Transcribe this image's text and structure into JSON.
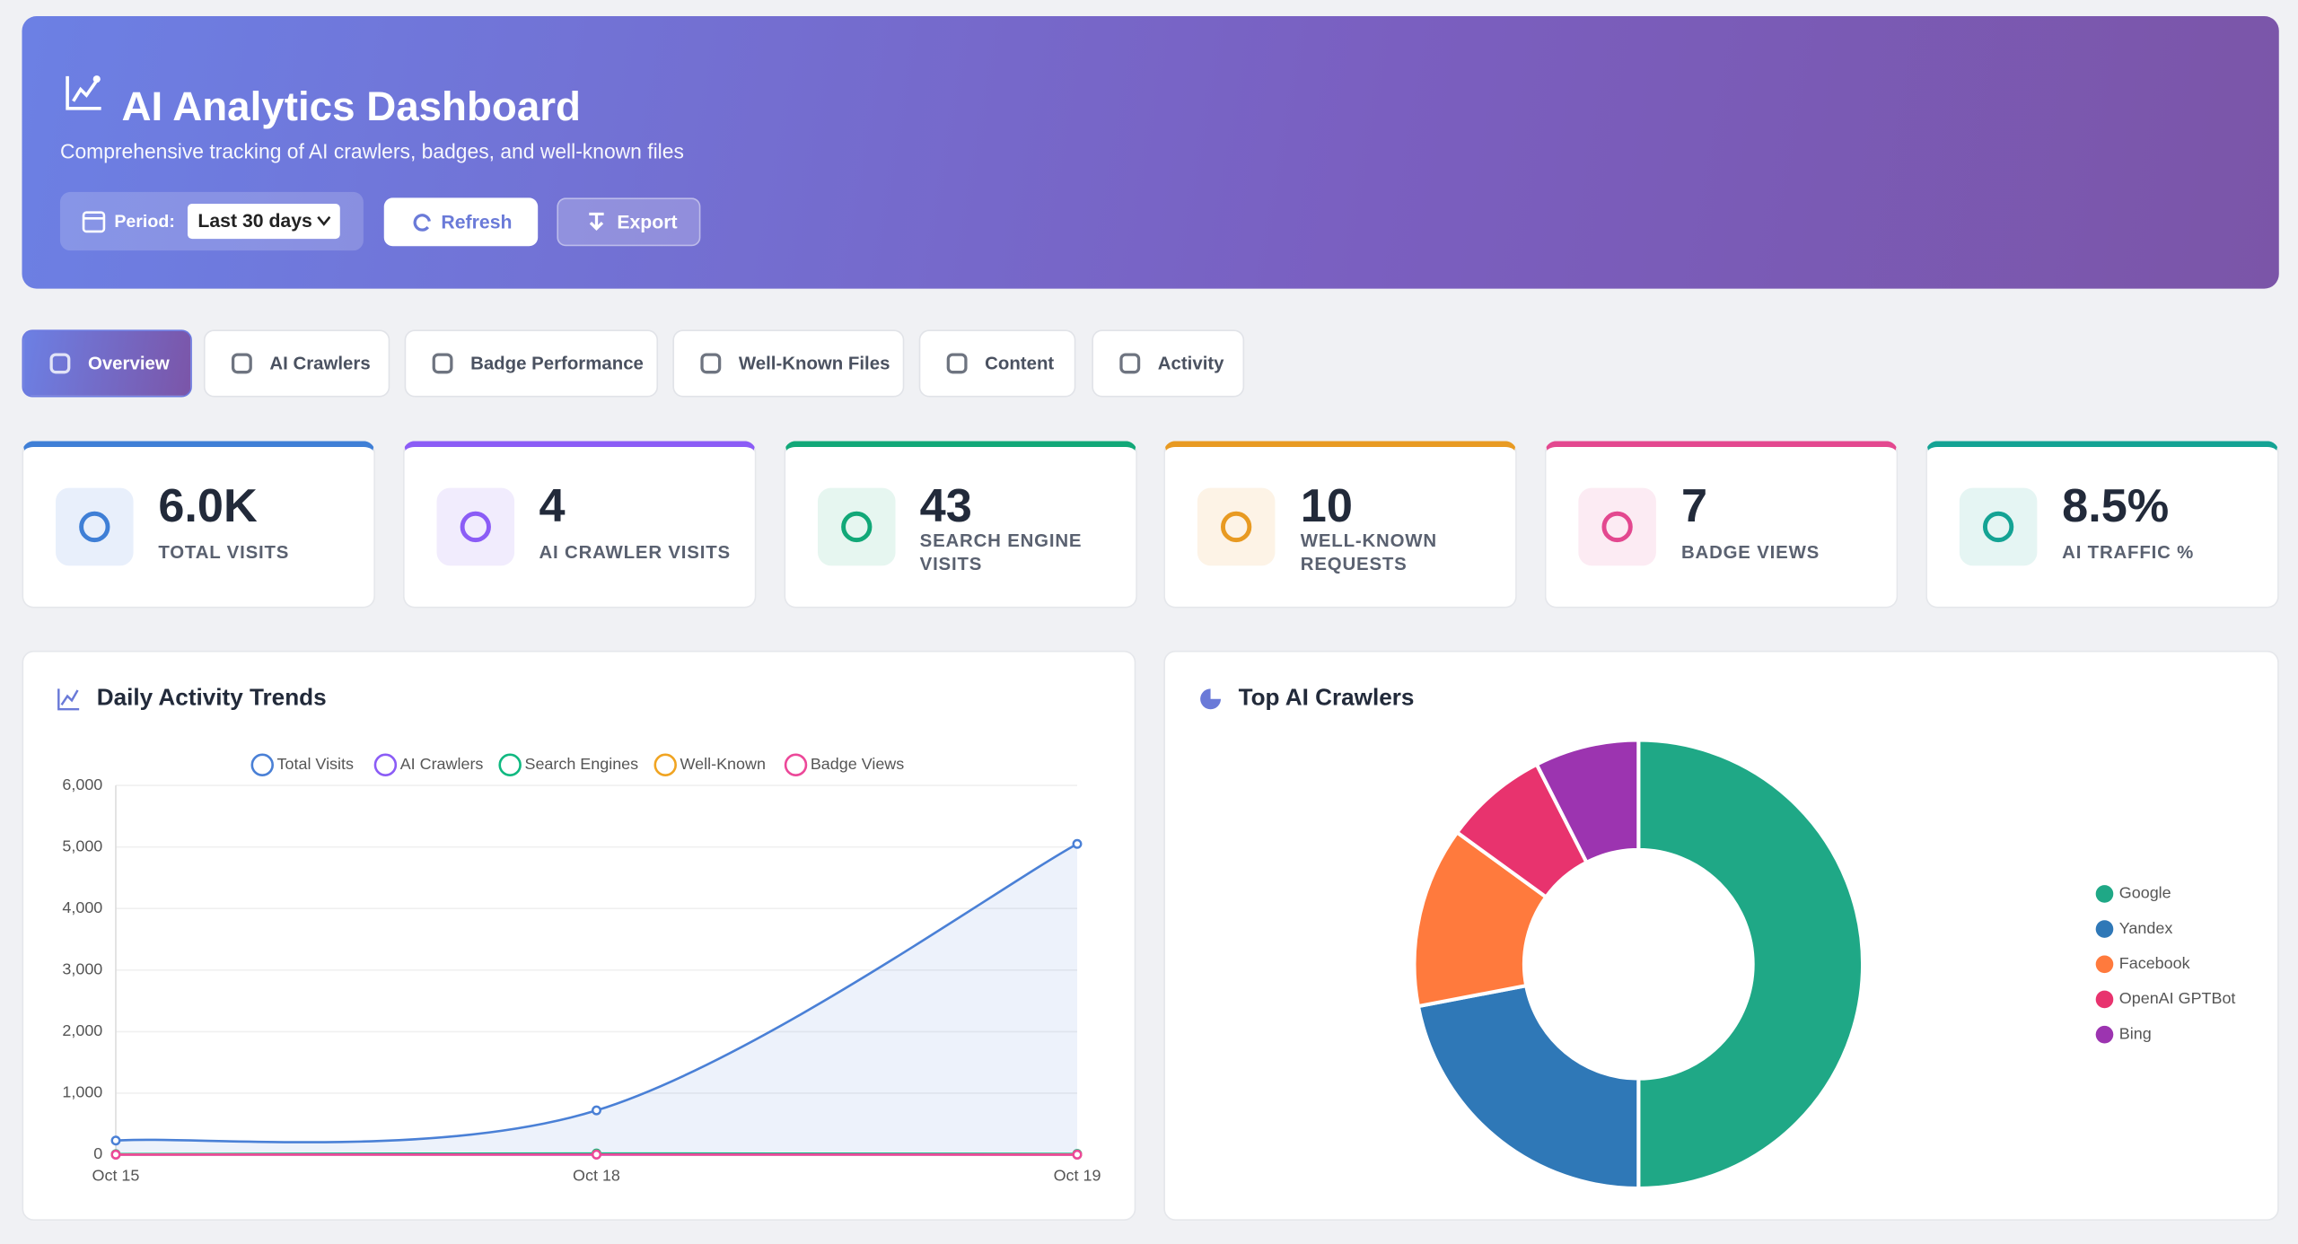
{
  "header": {
    "title": "AI Analytics Dashboard",
    "subtitle": "Comprehensive tracking of AI crawlers, badges, and well-known files",
    "period_label": "Period:",
    "period_value": "Last 30 days",
    "refresh": "Refresh",
    "export": "Export"
  },
  "tabs": [
    "Overview",
    "AI Crawlers",
    "Badge Performance",
    "Well-Known Files",
    "Content",
    "Activity"
  ],
  "stats": [
    {
      "value": "6.0K",
      "label": "TOTAL VISITS"
    },
    {
      "value": "4",
      "label": "AI CRAWLER VISITS"
    },
    {
      "value": "43",
      "label": "SEARCH ENGINE VISITS"
    },
    {
      "value": "10",
      "label": "WELL-KNOWN REQUESTS"
    },
    {
      "value": "7",
      "label": "BADGE VIEWS"
    },
    {
      "value": "8.5%",
      "label": "AI TRAFFIC %"
    }
  ],
  "chart_data": [
    {
      "type": "line",
      "title": "Daily Activity Trends",
      "categories": [
        "Oct 15",
        "Oct 18",
        "Oct 19"
      ],
      "series": [
        {
          "name": "Total Visits",
          "color": "#4a80d6",
          "values": [
            230,
            720,
            5050
          ]
        },
        {
          "name": "AI Crawlers",
          "color": "#8b5cf6",
          "values": [
            1,
            2,
            1
          ]
        },
        {
          "name": "Search Engines",
          "color": "#10b981",
          "values": [
            10,
            20,
            13
          ]
        },
        {
          "name": "Well-Known",
          "color": "#f0a422",
          "values": [
            3,
            4,
            3
          ]
        },
        {
          "name": "Badge Views",
          "color": "#ec4899",
          "values": [
            2,
            3,
            2
          ]
        }
      ],
      "ylim": [
        0,
        6000
      ],
      "yticks": [
        0,
        {
          "value": 1000,
          "label": "1,000"
        },
        {
          "value": 2000,
          "label": "2,000"
        },
        {
          "value": 3000,
          "label": "3,000"
        },
        {
          "value": 4000,
          "label": "4,000"
        },
        {
          "value": 5000,
          "label": "5,000"
        },
        {
          "value": 6000,
          "label": "6,000"
        }
      ],
      "grid": true,
      "legend": "top"
    },
    {
      "type": "pie",
      "title": "Top AI Crawlers",
      "categories": [
        "Google",
        "Yandex",
        "Facebook",
        "OpenAI GPTBot",
        "Bing"
      ],
      "values": [
        50,
        22,
        13,
        7.5,
        7.5
      ],
      "colors": [
        "#1fa886",
        "#2f78b7",
        "#ff7a3d",
        "#e8336e",
        "#9c34b0"
      ],
      "legend": "right"
    }
  ]
}
